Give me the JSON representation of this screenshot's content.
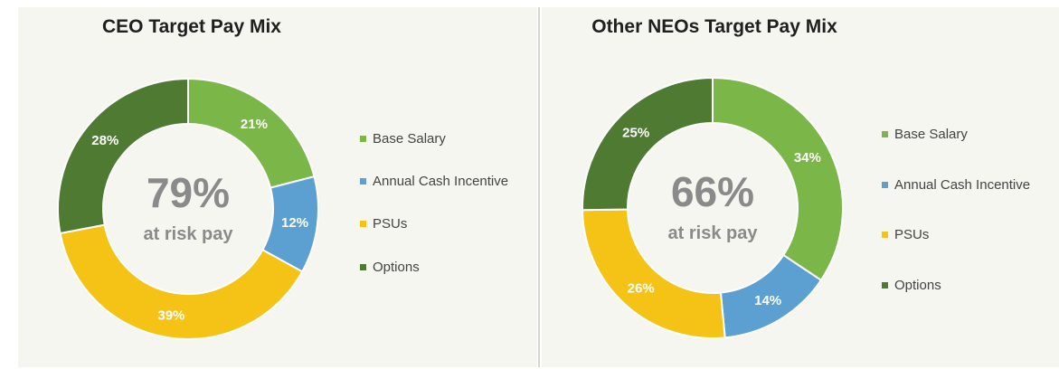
{
  "chart_data": [
    {
      "type": "donut",
      "title": "CEO Target Pay Mix",
      "center": {
        "value": "79%",
        "label": "at risk pay"
      },
      "legend_position": "right",
      "slices": [
        {
          "name": "Base Salary",
          "value": 21,
          "label": "21%",
          "color": "#7ab648"
        },
        {
          "name": "Annual Cash Incentive",
          "value": 12,
          "label": "12%",
          "color": "#5ba0d0"
        },
        {
          "name": "PSUs",
          "value": 39,
          "label": "39%",
          "color": "#f4c316"
        },
        {
          "name": "Options",
          "value": 28,
          "label": "28%",
          "color": "#4e7a32"
        }
      ]
    },
    {
      "type": "donut",
      "title": "Other NEOs Target Pay Mix",
      "center": {
        "value": "66%",
        "label": "at risk pay"
      },
      "legend_position": "right",
      "slices": [
        {
          "name": "Base Salary",
          "value": 34,
          "label": "34%",
          "color": "#7ab648"
        },
        {
          "name": "Annual Cash Incentive",
          "value": 14,
          "label": "14%",
          "color": "#5ba0d0"
        },
        {
          "name": "PSUs",
          "value": 26,
          "label": "26%",
          "color": "#f4c316"
        },
        {
          "name": "Options",
          "value": 25,
          "label": "25%",
          "color": "#4e7a32"
        }
      ]
    }
  ]
}
